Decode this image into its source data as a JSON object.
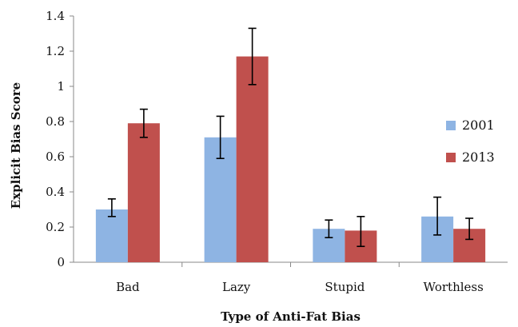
{
  "chart_data": {
    "type": "bar",
    "xlabel": "Type of Anti-Fat Bias",
    "ylabel": "Explicit Bias Score",
    "ylim": [
      0,
      1.4
    ],
    "yticks": [
      0,
      0.2,
      0.4,
      0.6,
      0.8,
      1,
      1.2,
      1.4
    ],
    "ytick_labels": [
      "0",
      "0.2",
      "0.4",
      "0.6",
      "0.8",
      "1",
      "1.2",
      "1.4"
    ],
    "categories": [
      "Bad",
      "Lazy",
      "Stupid",
      "Worthless"
    ],
    "series": [
      {
        "name": "2001",
        "color": "#8eb4e3",
        "values": [
          0.3,
          0.71,
          0.19,
          0.26
        ],
        "err_low": [
          0.26,
          0.59,
          0.14,
          0.155
        ],
        "err_high": [
          0.36,
          0.83,
          0.24,
          0.37
        ]
      },
      {
        "name": "2013",
        "color": "#c0504d",
        "values": [
          0.79,
          1.17,
          0.18,
          0.19
        ],
        "err_low": [
          0.71,
          1.01,
          0.09,
          0.13
        ],
        "err_high": [
          0.87,
          1.33,
          0.26,
          0.25
        ]
      }
    ],
    "legend_position": "right",
    "grid": false
  }
}
